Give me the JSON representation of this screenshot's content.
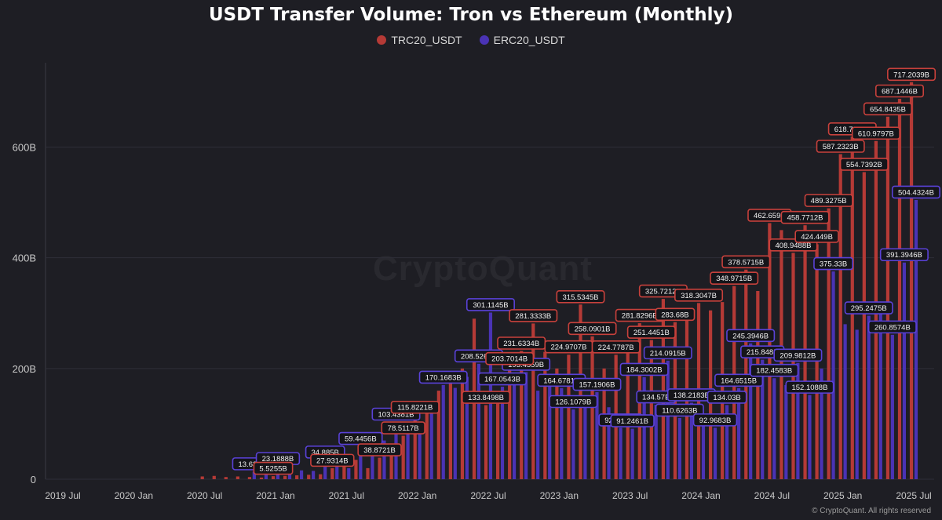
{
  "chart_data": {
    "type": "bar",
    "title": "USDT Transfer Volume: Tron vs Ethereum (Monthly)",
    "ylim": [
      0,
      750
    ],
    "y_ticks": [
      "0",
      "200B",
      "400B",
      "600B"
    ],
    "y_tick_values": [
      0,
      200,
      400,
      600
    ],
    "x_ticks": [
      "2019 Jul",
      "2020 Jan",
      "2020 Jul",
      "2021 Jan",
      "2021 Jul",
      "2022 Jan",
      "2022 Jul",
      "2023 Jan",
      "2023 Jul",
      "2024 Jan",
      "2024 Jul",
      "2025 Jan",
      "2025 Jul"
    ],
    "grid": true,
    "legend_position": "top-center",
    "colors": {
      "trc": "#b53a36",
      "erc": "#4a33b5",
      "background": "#1e1e24"
    },
    "series": [
      {
        "name": "TRC20_USDT",
        "values": [
          5,
          6,
          4,
          5,
          4,
          3,
          5.5255,
          6,
          7,
          8,
          9,
          20,
          27.9314,
          35,
          20,
          38.8721,
          60,
          78.5117,
          115.8221,
          140,
          160,
          190,
          200,
          290,
          133.8498,
          150,
          203.7014,
          231.6334,
          281.3333,
          230,
          200,
          224.9707,
          315.5345,
          258.0901,
          200,
          224.7787,
          240,
          281.8296,
          251.4451,
          325.7212,
          283.68,
          300,
          318.3047,
          305,
          320,
          348.9715,
          378.5715,
          340,
          462.659,
          450,
          408.9488,
          458.7712,
          424.449,
          489.3275,
          587.2323,
          618.7251,
          554.7392,
          610.9797,
          654.8435,
          687.1446,
          717.2039
        ],
        "labels": {
          "6": "5.5255B",
          "11": "27.9314B",
          "15": "38.8721B",
          "17": "78.5117B",
          "18": "115.8221B",
          "24": "133.8498B",
          "26": "203.7014B",
          "27": "231.6334B",
          "28": "281.3333B",
          "31": "224.9707B",
          "32": "315.5345B",
          "33": "258.0901B",
          "35": "224.7787B",
          "37": "281.8296B",
          "38": "251.4451B",
          "39": "325.7212B",
          "40": "283.68B",
          "42": "318.3047B",
          "45": "348.9715B",
          "46": "378.5715B",
          "48": "462.659B",
          "50": "408.9488B",
          "51": "458.7712B",
          "52": "424.449B",
          "53": "489.3275B",
          "54": "587.2323B",
          "55": "618.7251B",
          "56": "554.7392B",
          "57": "610.9797B",
          "58": "654.8435B",
          "59": "687.1446B",
          "60": "717.2039B"
        }
      },
      {
        "name": "ERC20_USDT",
        "values": [
          13.6397,
          15,
          23.1888,
          18,
          16,
          15,
          34.885,
          25,
          20,
          59.4456,
          45,
          70,
          103.4381,
          85,
          95,
          120,
          170.1683,
          165,
          185,
          208.5265,
          301.1145,
          167.0543,
          180,
          193.4559,
          160,
          175,
          164.6781,
          126.1079,
          140,
          157.1906,
          130,
          92.9572,
          91.2461,
          184.3002,
          134.57,
          214.0915,
          110.6263,
          138.2183,
          100,
          92.9683,
          134.03,
          164.6515,
          245.3946,
          215.848,
          182.4583,
          170,
          209.9812,
          152.1088,
          200,
          375.33,
          280,
          270,
          295.2475,
          300,
          260.8574,
          391.3946,
          504.4324
        ],
        "labels": {
          "0": "13.6397B",
          "2": "23.1888B",
          "6": "34.885B",
          "9": "59.4456B",
          "12": "103.4381B",
          "16": "170.1683B",
          "19": "208.5265B",
          "20": "301.1145B",
          "21": "167.0543B",
          "23": "193.4559B",
          "26": "164.6781B",
          "27": "126.1079B",
          "29": "157.1906B",
          "31": "92.9572B",
          "32": "91.2461B",
          "33": "184.3002B",
          "34": "134.57B",
          "35": "214.0915B",
          "36": "110.6263B",
          "37": "138.2183B",
          "39": "92.9683B",
          "40": "134.03B",
          "41": "164.6515B",
          "42": "245.3946B",
          "43": "215.848B",
          "44": "182.4583B",
          "46": "209.9812B",
          "47": "152.1088B",
          "49": "375.33B",
          "52": "295.2475B",
          "54": "260.8574B",
          "55": "391.3946B",
          "56": "504.4324B"
        }
      }
    ]
  },
  "watermark": "CryptoQuant",
  "copyright": "© CryptoQuant. All rights reserved"
}
